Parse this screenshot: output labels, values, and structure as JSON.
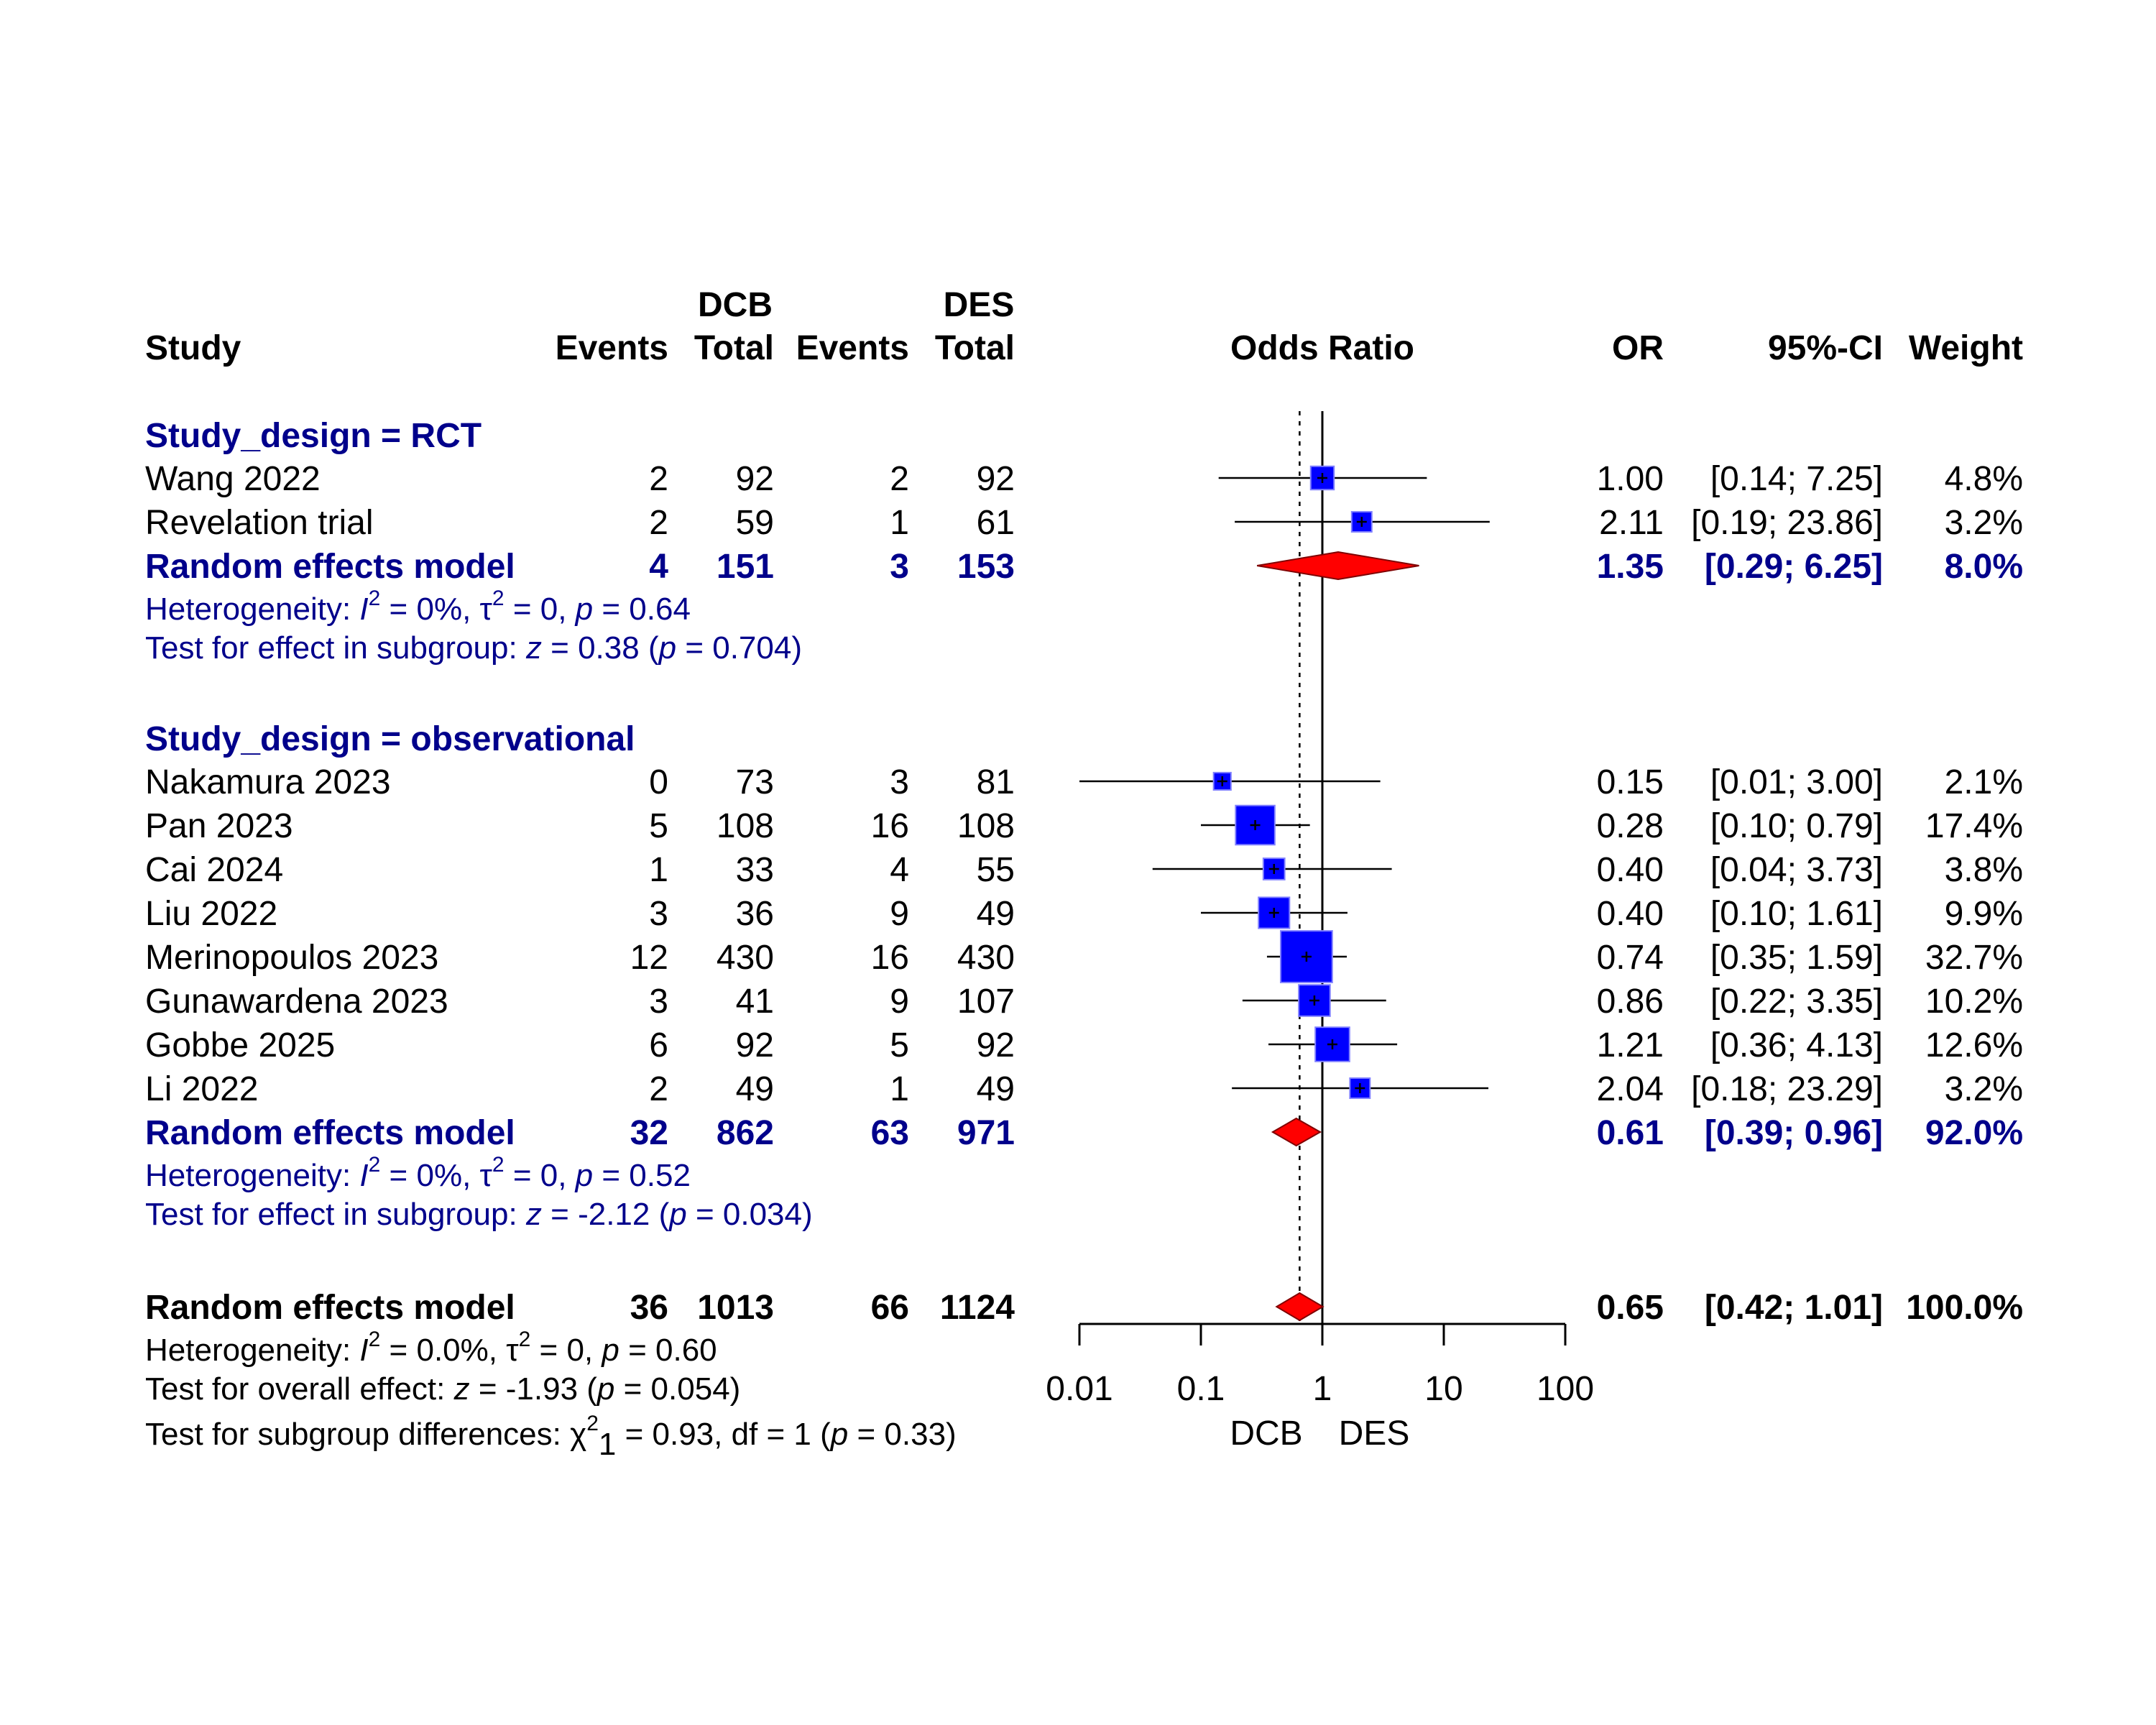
{
  "chart_data": {
    "type": "forest",
    "headers": {
      "study": "Study",
      "group1": "DCB",
      "group2": "DES",
      "events": "Events",
      "total": "Total",
      "effect": "Odds Ratio",
      "or": "OR",
      "ci": "95%-CI",
      "weight": "Weight"
    },
    "subgroups": [
      {
        "title": "Study_design = RCT",
        "studies": [
          {
            "name": "Wang 2022",
            "e1": "2",
            "n1": "92",
            "e2": "2",
            "n2": "92",
            "or": 1.0,
            "lo": 0.14,
            "hi": 7.25,
            "w": 4.8,
            "or_text": "1.00",
            "ci_text": "[0.14;  7.25]",
            "w_text": "4.8%"
          },
          {
            "name": "Revelation trial",
            "e1": "2",
            "n1": "59",
            "e2": "1",
            "n2": "61",
            "or": 2.11,
            "lo": 0.19,
            "hi": 23.86,
            "w": 3.2,
            "or_text": "2.11",
            "ci_text": "[0.19; 23.86]",
            "w_text": "3.2%"
          }
        ],
        "pooled": {
          "label": "Random effects model",
          "e1": "4",
          "n1": "151",
          "e2": "3",
          "n2": "153",
          "or": 1.35,
          "lo": 0.29,
          "hi": 6.25,
          "or_text": "1.35",
          "ci_text": "[0.29;  6.25]",
          "w_text": "8.0%"
        },
        "heterogeneity": {
          "prefix": "Heterogeneity: ",
          "I": "I",
          "sup2": "2",
          "i2": " = 0%, ",
          "tau": "τ",
          "tau2": " = 0, ",
          "p": "p",
          "pval": " = 0.64"
        },
        "test": {
          "prefix": "Test for effect in subgroup: ",
          "z": "z",
          "zval": " = 0.38 (",
          "p": "p",
          "pval": " = 0.704)"
        }
      },
      {
        "title": "Study_design = observational",
        "studies": [
          {
            "name": "Nakamura 2023",
            "e1": "0",
            "n1": "73",
            "e2": "3",
            "n2": "81",
            "or": 0.15,
            "lo": 0.01,
            "hi": 3.0,
            "w": 2.1,
            "or_text": "0.15",
            "ci_text": "[0.01;  3.00]",
            "w_text": "2.1%"
          },
          {
            "name": "Pan 2023",
            "e1": "5",
            "n1": "108",
            "e2": "16",
            "n2": "108",
            "or": 0.28,
            "lo": 0.1,
            "hi": 0.79,
            "w": 17.4,
            "or_text": "0.28",
            "ci_text": "[0.10;  0.79]",
            "w_text": "17.4%"
          },
          {
            "name": "Cai 2024",
            "e1": "1",
            "n1": "33",
            "e2": "4",
            "n2": "55",
            "or": 0.4,
            "lo": 0.04,
            "hi": 3.73,
            "w": 3.8,
            "or_text": "0.40",
            "ci_text": "[0.04;  3.73]",
            "w_text": "3.8%"
          },
          {
            "name": "Liu 2022",
            "e1": "3",
            "n1": "36",
            "e2": "9",
            "n2": "49",
            "or": 0.4,
            "lo": 0.1,
            "hi": 1.61,
            "w": 9.9,
            "or_text": "0.40",
            "ci_text": "[0.10;  1.61]",
            "w_text": "9.9%"
          },
          {
            "name": "Merinopoulos 2023",
            "e1": "12",
            "n1": "430",
            "e2": "16",
            "n2": "430",
            "or": 0.74,
            "lo": 0.35,
            "hi": 1.59,
            "w": 32.7,
            "or_text": "0.74",
            "ci_text": "[0.35;  1.59]",
            "w_text": "32.7%"
          },
          {
            "name": "Gunawardena 2023",
            "e1": "3",
            "n1": "41",
            "e2": "9",
            "n2": "107",
            "or": 0.86,
            "lo": 0.22,
            "hi": 3.35,
            "w": 10.2,
            "or_text": "0.86",
            "ci_text": "[0.22;  3.35]",
            "w_text": "10.2%"
          },
          {
            "name": "Gobbe 2025",
            "e1": "6",
            "n1": "92",
            "e2": "5",
            "n2": "92",
            "or": 1.21,
            "lo": 0.36,
            "hi": 4.13,
            "w": 12.6,
            "or_text": "1.21",
            "ci_text": "[0.36;  4.13]",
            "w_text": "12.6%"
          },
          {
            "name": "Li 2022",
            "e1": "2",
            "n1": "49",
            "e2": "1",
            "n2": "49",
            "or": 2.04,
            "lo": 0.18,
            "hi": 23.29,
            "w": 3.2,
            "or_text": "2.04",
            "ci_text": "[0.18; 23.29]",
            "w_text": "3.2%"
          }
        ],
        "pooled": {
          "label": "Random effects model",
          "e1": "32",
          "n1": "862",
          "e2": "63",
          "n2": "971",
          "or": 0.61,
          "lo": 0.39,
          "hi": 0.96,
          "or_text": "0.61",
          "ci_text": "[0.39;  0.96]",
          "w_text": "92.0%"
        },
        "heterogeneity": {
          "prefix": "Heterogeneity: ",
          "I": "I",
          "sup2": "2",
          "i2": " = 0%, ",
          "tau": "τ",
          "tau2": " = 0, ",
          "p": "p",
          "pval": " = 0.52"
        },
        "test": {
          "prefix": "Test for effect in subgroup: ",
          "z": "z",
          "zval": " = -2.12 (",
          "p": "p",
          "pval": " = 0.034)"
        }
      }
    ],
    "overall": {
      "label": "Random effects model",
      "e1": "36",
      "n1": "1013",
      "e2": "66",
      "n2": "1124",
      "or": 0.65,
      "lo": 0.42,
      "hi": 1.01,
      "or_text": "0.65",
      "ci_text": "[0.42;  1.01]",
      "w_text": "100.0%",
      "heterogeneity": {
        "prefix": "Heterogeneity: ",
        "I": "I",
        "sup2": "2",
        "i2": " = 0.0%, ",
        "tau": "τ",
        "tau2": " = 0, ",
        "p": "p",
        "pval": " = 0.60"
      },
      "test": {
        "prefix": "Test for overall effect: ",
        "z": "z",
        "zval": " = -1.93 (",
        "p": "p",
        "pval": " = 0.054)"
      },
      "subgroup_test": {
        "prefix": "Test for subgroup differences: ",
        "chi": "χ",
        "sup": "2",
        "sub": "1",
        "rest": " = 0.93, df = 1 (",
        "p": "p",
        "pval": " = 0.33)"
      }
    },
    "x_axis": {
      "scale": "log",
      "ticks": [
        0.01,
        0.1,
        1,
        10,
        100
      ],
      "tick_labels": [
        "0.01",
        "0.1",
        "1",
        "10",
        "100"
      ],
      "left_label": "DCB",
      "right_label": "DES",
      "null_value": 1
    },
    "colors": {
      "subgroup_text": "#00008B",
      "square_fill": "#0000FF",
      "diamond_fill": "#FF0000",
      "line": "#000000"
    }
  }
}
